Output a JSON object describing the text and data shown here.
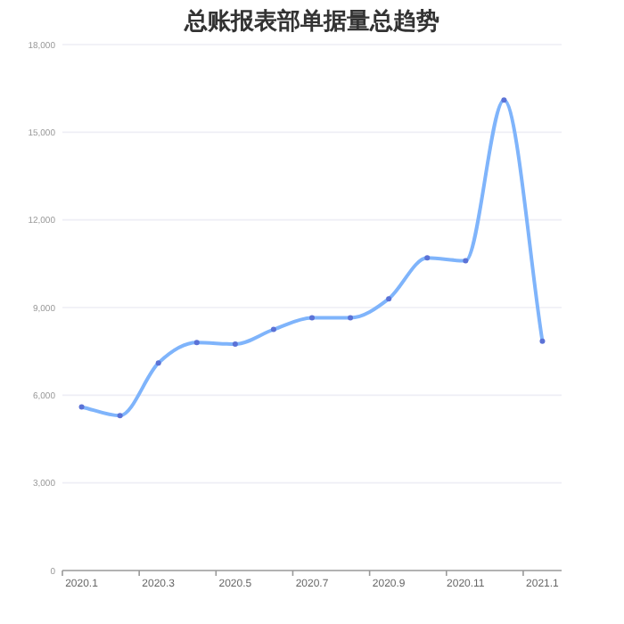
{
  "chart_data": {
    "type": "line",
    "title": "总账报表部单据量总趋势",
    "categories": [
      "2020.1",
      null,
      "2020.3",
      null,
      "2020.5",
      null,
      "2020.7",
      null,
      "2020.9",
      null,
      "2020.11",
      null,
      "2021.1"
    ],
    "series": [
      {
        "color": "#7fb4fb",
        "values": [
          5600,
          5300,
          7100,
          7800,
          7750,
          8250,
          8650,
          8650,
          9300,
          10700,
          10600,
          16100,
          7850
        ]
      }
    ],
    "ylim": [
      0,
      18000
    ],
    "yticks": [
      {
        "value": 0,
        "label": "0"
      },
      {
        "value": 3000,
        "label": "3,000"
      },
      {
        "value": 6000,
        "label": "6,000"
      },
      {
        "value": 9000,
        "label": "9,000"
      },
      {
        "value": 12000,
        "label": "12,000"
      },
      {
        "value": 15000,
        "label": "15,000"
      },
      {
        "value": 18000,
        "label": "18,000"
      }
    ],
    "grid": "y",
    "marker": "circle"
  }
}
